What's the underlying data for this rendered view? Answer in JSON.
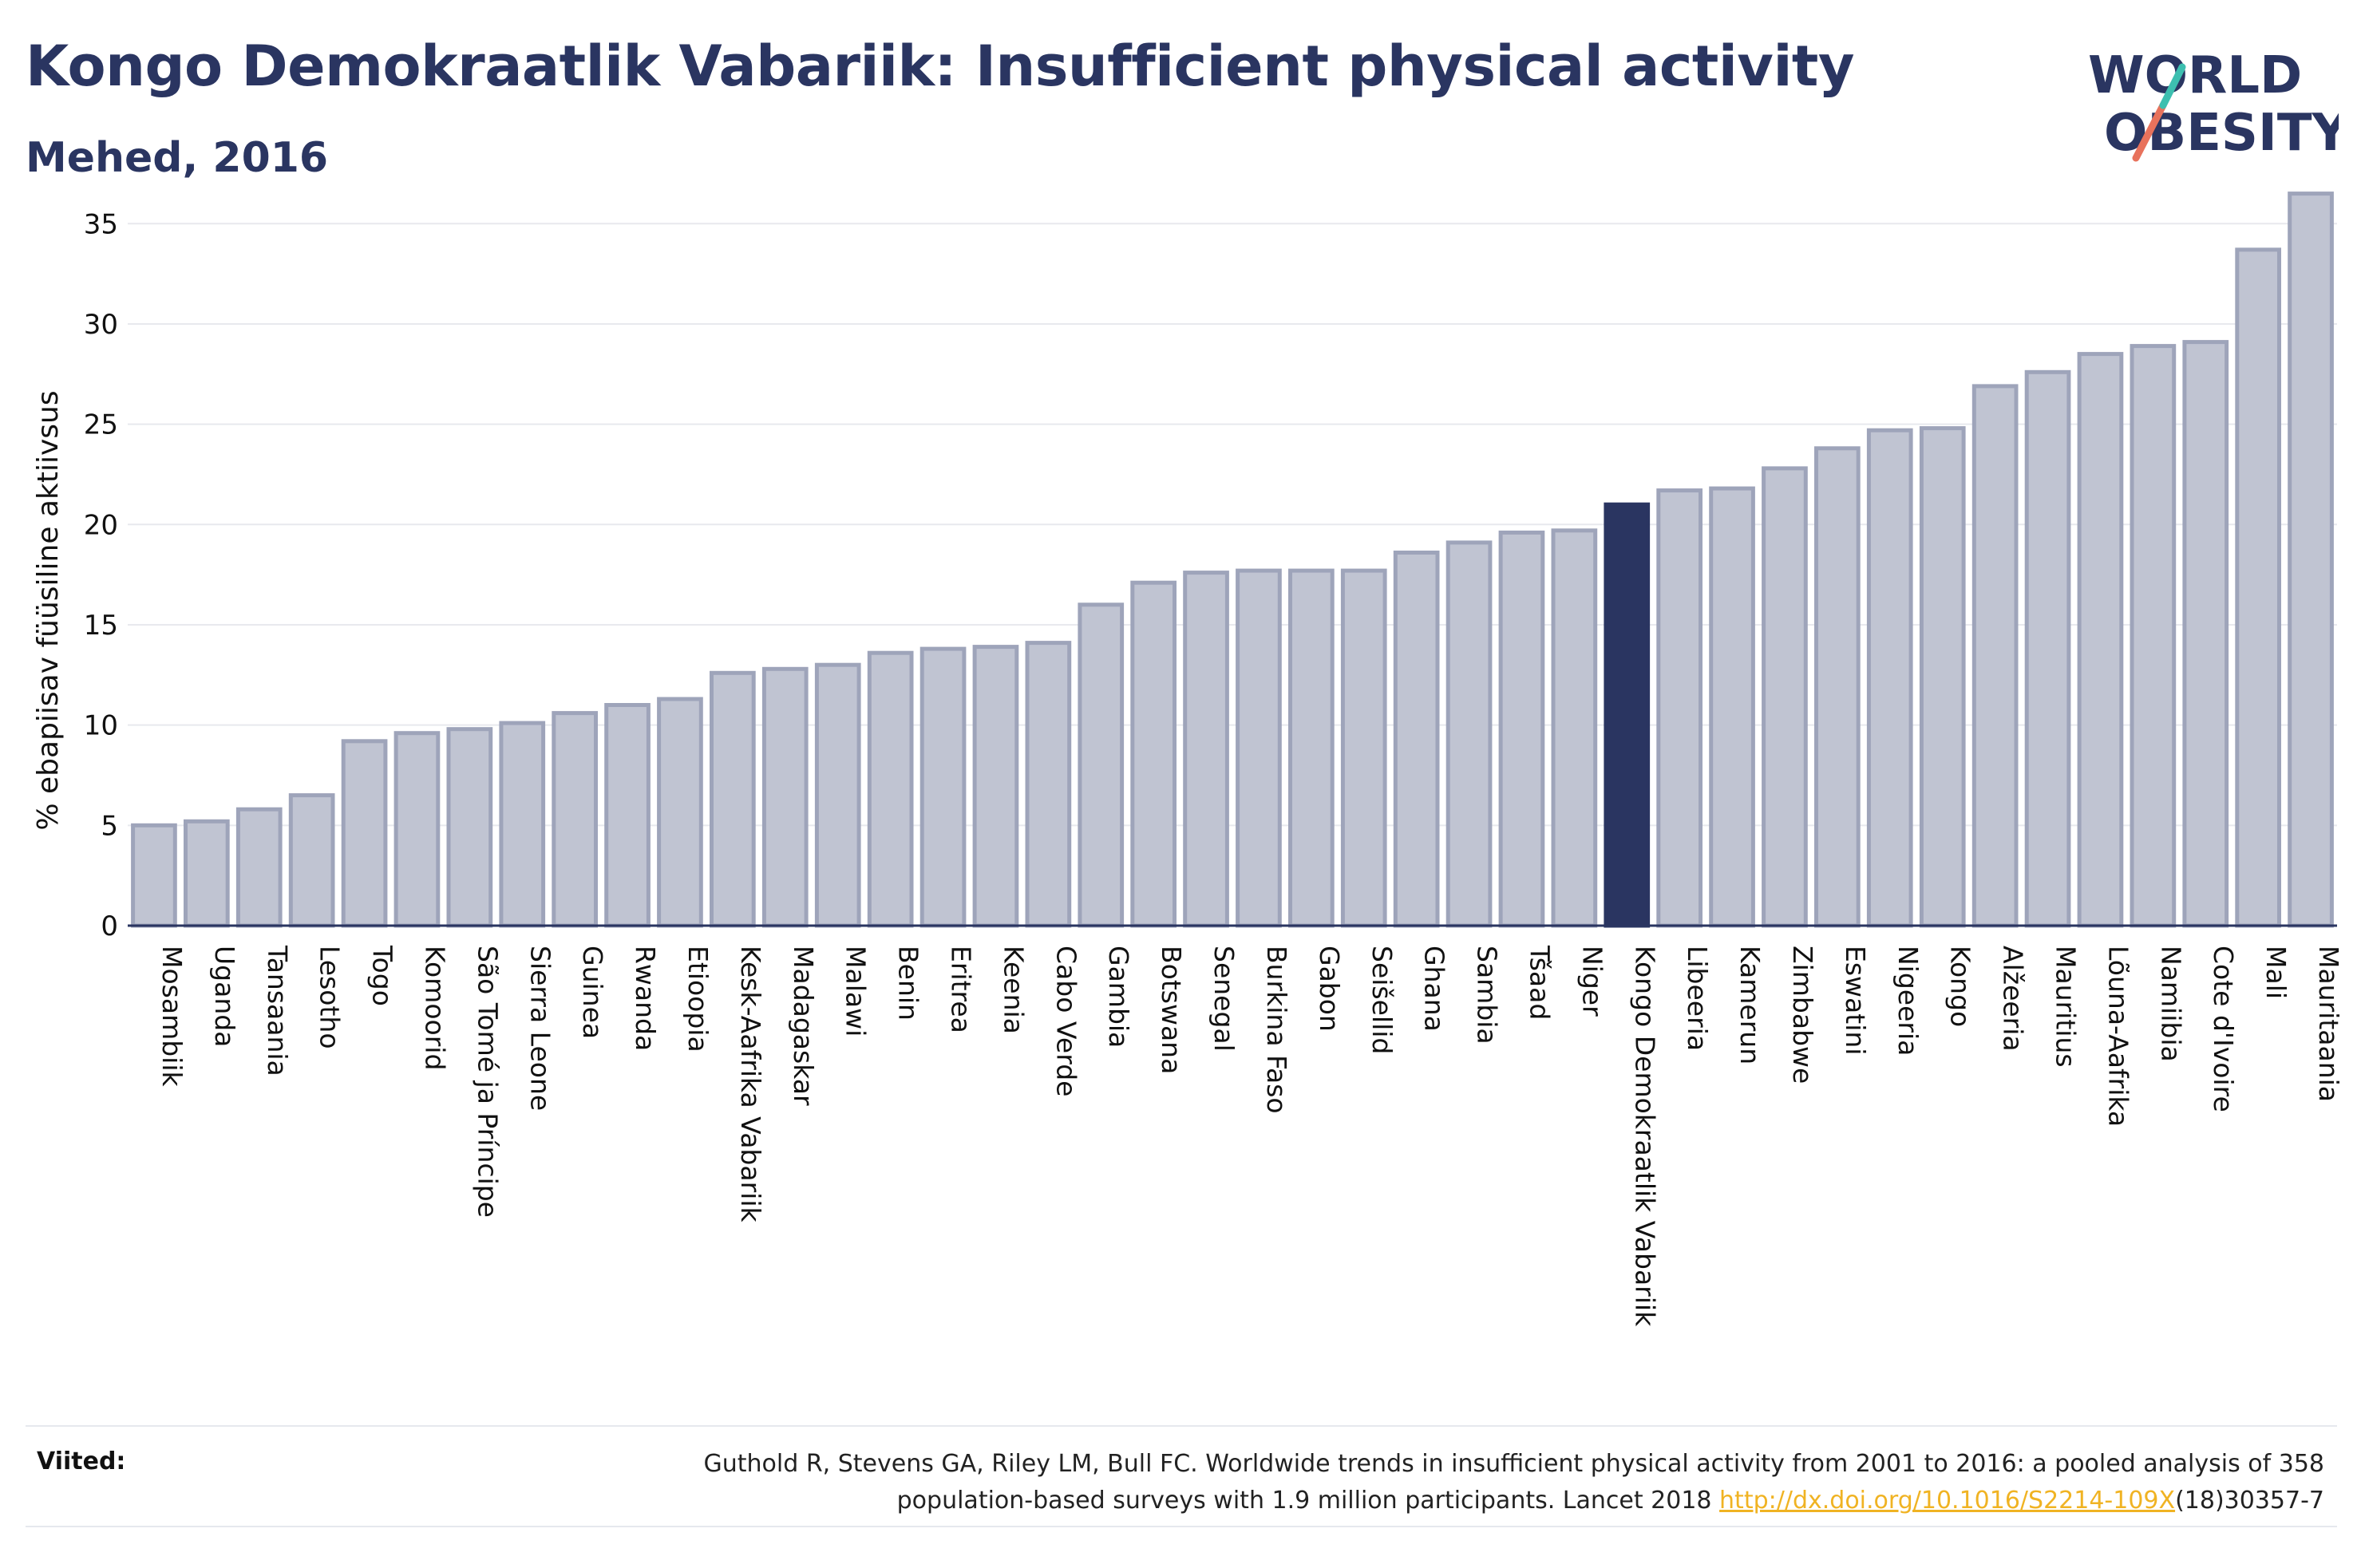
{
  "header": {
    "title": "Kongo Demokraatlik Vabariik: Insufficient physical activity",
    "subtitle": "Mehed, 2016"
  },
  "logo": {
    "line1": "WORLD",
    "line2": "OBESITY"
  },
  "colors": {
    "bar": "#c0c4d2",
    "bar_border": "#9ea4ba",
    "highlight": "#2a3561",
    "title": "#2a3561",
    "link": "#f0b323",
    "logo_slash_red": "#e8725c",
    "logo_slash_teal": "#3dbfb0"
  },
  "chart_data": {
    "type": "bar",
    "ylabel": "% ebapiisav füüsiline aktiivsus",
    "ylim": [
      0,
      37
    ],
    "yticks": [
      0,
      5,
      10,
      15,
      20,
      25,
      30,
      35
    ],
    "grid": true,
    "highlight": "Kongo Demokraatlik Vabariik",
    "categories": [
      "Mosambiik",
      "Uganda",
      "Tansaania",
      "Lesotho",
      "Togo",
      "Komoorid",
      "São Tomé ja Príncipe",
      "Sierra Leone",
      "Guinea",
      "Rwanda",
      "Etioopia",
      "Kesk-Aafrika Vabariik",
      "Madagaskar",
      "Malawi",
      "Benin",
      "Eritrea",
      "Keenia",
      "Cabo Verde",
      "Gambia",
      "Botswana",
      "Senegal",
      "Burkina Faso",
      "Gabon",
      "Seišellid",
      "Ghana",
      "Sambia",
      "Tšaad",
      "Niger",
      "Kongo Demokraatlik Vabariik",
      "Libeeria",
      "Kamerun",
      "Zimbabwe",
      "Eswatini",
      "Nigeeria",
      "Kongo",
      "Alžeeria",
      "Mauritius",
      "Lõuna-Aafrika",
      "Namiibia",
      "Cote d'Ivoire",
      "Mali",
      "Mauritaania"
    ],
    "values": [
      5.0,
      5.2,
      5.8,
      6.5,
      9.2,
      9.6,
      9.8,
      10.1,
      10.6,
      11.0,
      11.3,
      12.6,
      12.8,
      13.0,
      13.6,
      13.8,
      13.9,
      14.1,
      16.0,
      17.1,
      17.6,
      17.7,
      17.7,
      17.7,
      18.6,
      19.1,
      19.6,
      19.7,
      21.0,
      21.7,
      21.8,
      22.8,
      23.8,
      24.7,
      24.8,
      26.9,
      27.6,
      28.5,
      28.9,
      29.1,
      33.7,
      36.5
    ]
  },
  "references": {
    "label": "Viited:",
    "text_line1": "Guthold R, Stevens GA, Riley LM, Bull FC. Worldwide trends in insufficient physical activity from 2001 to 2016: a pooled analysis of 358",
    "text_line2_pre": "population-based surveys with 1.9 million participants. Lancet 2018 ",
    "link_text": "http://dx.doi.org/10.1016/S2214-109X",
    "text_line2_post": "(18)30357-7"
  }
}
